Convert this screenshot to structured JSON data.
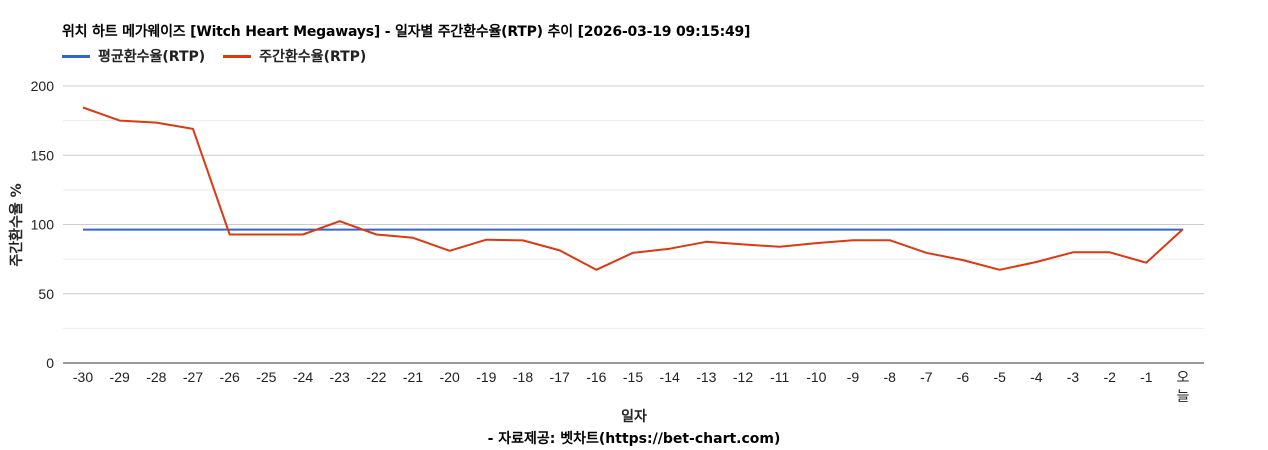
{
  "header": {
    "title": "위치 하트 메가웨이즈 [Witch Heart Megaways] - 일자별 주간환수율(RTP) 추이 [2026-03-19 09:15:49]"
  },
  "legend": [
    {
      "label": "평균환수율(RTP)",
      "color": "#3366cc"
    },
    {
      "label": "주간환수율(RTP)",
      "color": "#dc3912"
    }
  ],
  "axes": {
    "ylabel": "주간환수율 %",
    "xlabel": "일자"
  },
  "footer": {
    "source": "- 자료제공: 벳차트(https://bet-chart.com)"
  },
  "chart_data": {
    "type": "line",
    "title": "위치 하트 메가웨이즈 [Witch Heart Megaways] - 일자별 주간환수율(RTP) 추이 [2026-03-19 09:15:49]",
    "xlabel": "일자",
    "ylabel": "주간환수율 %",
    "ylim": [
      0,
      200
    ],
    "yticks": [
      0,
      50,
      100,
      150,
      200
    ],
    "grid": true,
    "legend_position": "top",
    "categories": [
      "-30",
      "-29",
      "-28",
      "-27",
      "-26",
      "-25",
      "-24",
      "-23",
      "-22",
      "-21",
      "-20",
      "-19",
      "-18",
      "-17",
      "-16",
      "-15",
      "-14",
      "-13",
      "-12",
      "-11",
      "-10",
      "-9",
      "-8",
      "-7",
      "-6",
      "-5",
      "-4",
      "-3",
      "-2",
      "-1",
      "오늘"
    ],
    "series": [
      {
        "name": "평균환수율(RTP)",
        "color": "#3366cc",
        "values": [
          96.3,
          96.3,
          96.3,
          96.3,
          96.3,
          96.3,
          96.3,
          96.3,
          96.3,
          96.3,
          96.3,
          96.3,
          96.3,
          96.3,
          96.3,
          96.3,
          96.3,
          96.3,
          96.3,
          96.3,
          96.3,
          96.3,
          96.3,
          96.3,
          96.3,
          96.3,
          96.3,
          96.3,
          96.3,
          96.3,
          96.3
        ]
      },
      {
        "name": "주간환수율(RTP)",
        "color": "#dc3912",
        "values": [
          184.5,
          175.0,
          173.6,
          169.0,
          92.8,
          92.8,
          92.8,
          102.4,
          92.8,
          90.4,
          81.0,
          89.0,
          88.5,
          81.3,
          67.3,
          79.6,
          82.5,
          87.5,
          85.6,
          83.9,
          86.6,
          88.7,
          88.7,
          79.6,
          74.3,
          67.3,
          72.9,
          79.9,
          79.9,
          72.4,
          96.7
        ]
      }
    ]
  }
}
